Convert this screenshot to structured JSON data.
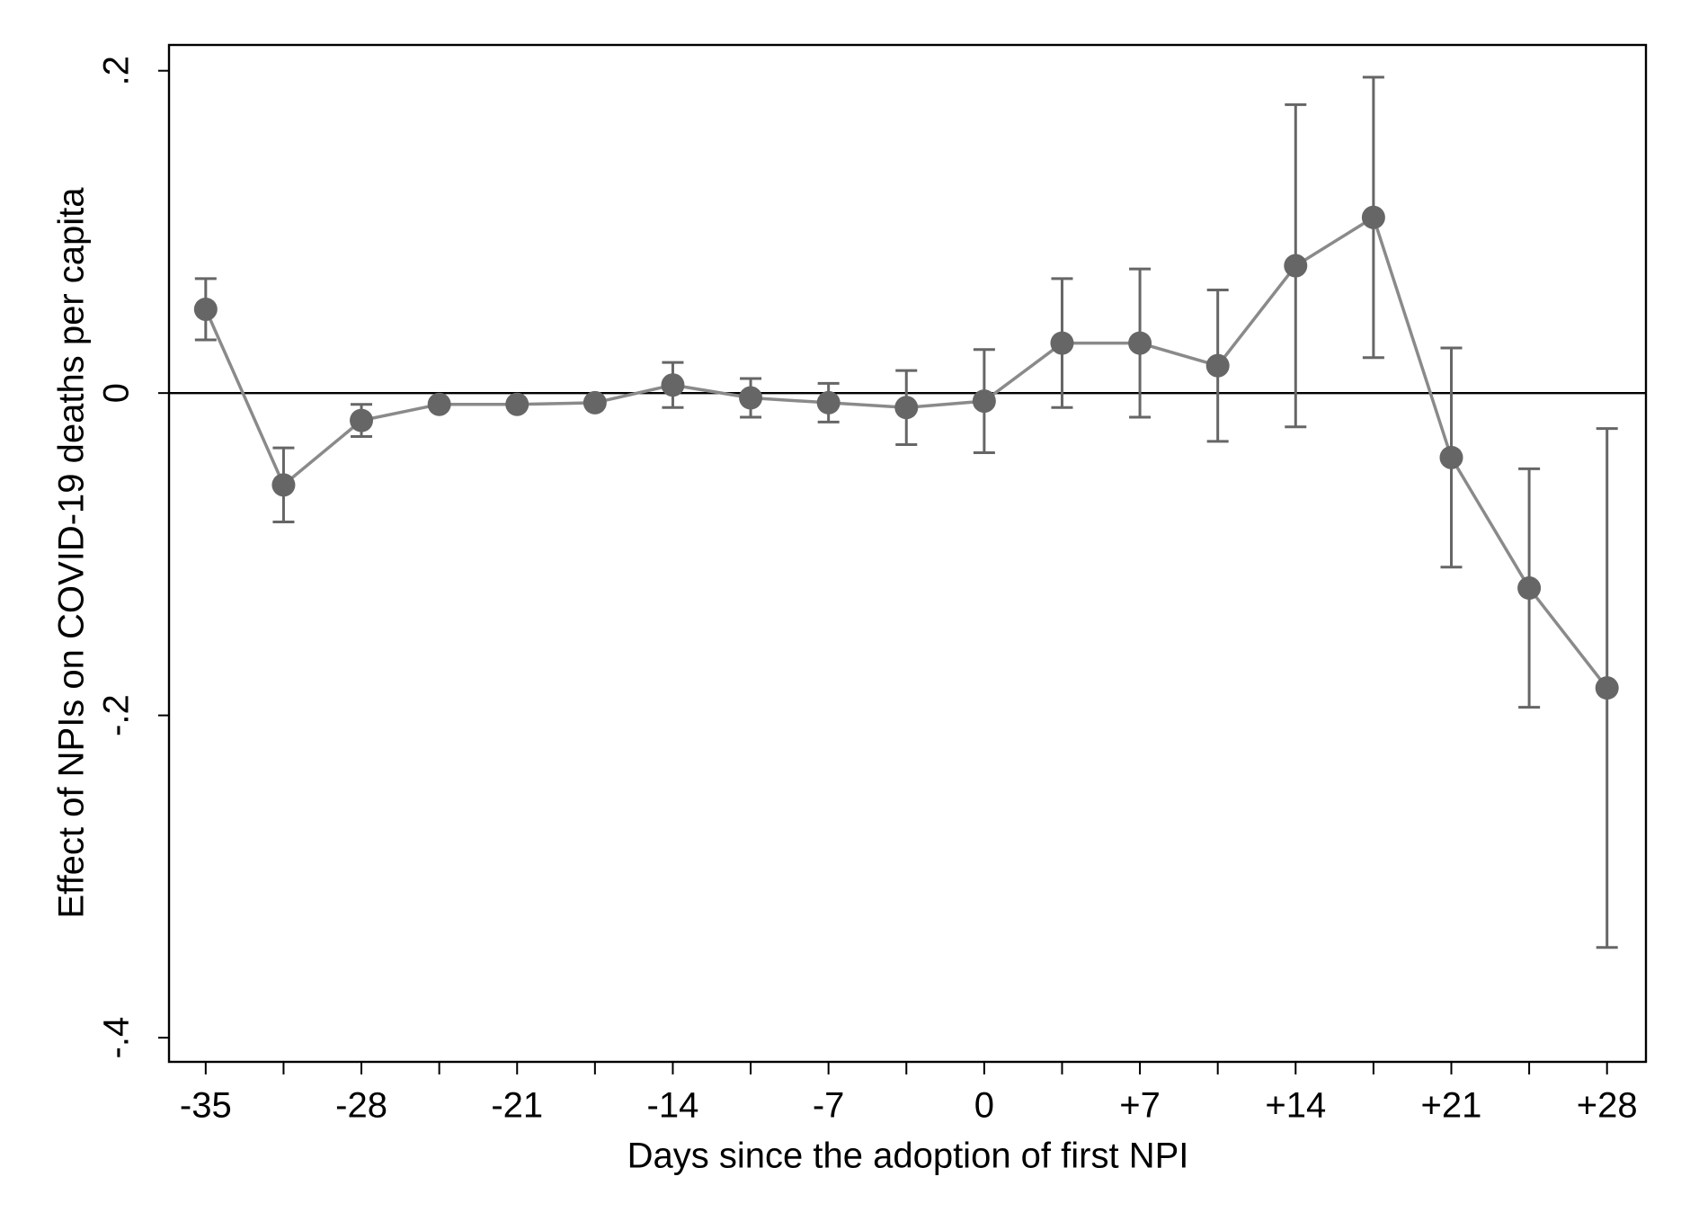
{
  "chart_data": {
    "type": "errorbar",
    "x_label": "Days since the adoption of first NPI",
    "y_label": "Effect of NPIs on COVID-19 deaths per capita",
    "x": [
      -35,
      -31.5,
      -28,
      -24.5,
      -21,
      -17.5,
      -14,
      -10.5,
      -7,
      -3.5,
      0,
      3.5,
      7,
      10.5,
      14,
      17.5,
      21,
      24.5,
      28
    ],
    "values": [
      0.052,
      -0.057,
      -0.017,
      -0.007,
      -0.007,
      -0.006,
      0.005,
      -0.003,
      -0.006,
      -0.009,
      -0.005,
      0.031,
      0.031,
      0.017,
      0.079,
      0.109,
      -0.04,
      -0.121,
      -0.183
    ],
    "errors": [
      0.019,
      0.023,
      0.01,
      null,
      null,
      null,
      0.014,
      0.012,
      0.012,
      0.023,
      0.032,
      0.04,
      0.046,
      0.047,
      0.1,
      0.087,
      0.068,
      0.074,
      0.161
    ],
    "color": "#666666",
    "line_color": "#8a8a8a",
    "reference_line": 0,
    "xlim": [
      -36.65,
      29.75
    ],
    "ylim": [
      -0.415,
      0.216
    ],
    "xticks": [
      -35,
      -28,
      -21,
      -14,
      -7,
      0,
      {
        "value": 7,
        "label": "+7"
      },
      {
        "value": 14,
        "label": "+14"
      },
      {
        "value": 21,
        "label": "+21"
      },
      {
        "value": 28,
        "label": "+28"
      }
    ],
    "xticks_minor": [
      -31.5,
      -24.5,
      -17.5,
      -10.5,
      -3.5,
      3.5,
      10.5,
      17.5,
      24.5
    ],
    "yticks": [
      {
        "value": 0.2,
        "label": ".2"
      },
      0,
      {
        "value": -0.2,
        "label": "-.2"
      },
      {
        "value": -0.4,
        "label": "-.4"
      }
    ]
  }
}
